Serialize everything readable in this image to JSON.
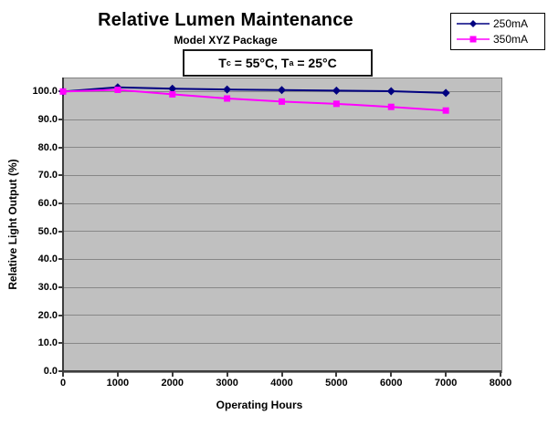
{
  "chart": {
    "title": "Relative Lumen Maintenance",
    "subtitle": "Model XYZ Package",
    "annotation": {
      "pre": "T",
      "sub1": "c",
      "mid": " = 55°C, T",
      "sub2": "a",
      "post": " = 25°C"
    },
    "x_axis_title": "Operating Hours",
    "y_axis_title": "Relative Light Output (%)"
  },
  "chart_data": {
    "type": "line",
    "title": "Relative Lumen Maintenance",
    "subtitle": "Model XYZ Package",
    "annotation_text": "Tc = 55°C, Ta = 25°C",
    "xlabel": "Operating Hours",
    "ylabel": "Relative Light Output (%)",
    "x": [
      0,
      1000,
      2000,
      3000,
      4000,
      5000,
      6000,
      7000
    ],
    "series": [
      {
        "name": "250mA",
        "color": "#000080",
        "marker": "diamond",
        "values": [
          100.0,
          101.5,
          101.0,
          100.7,
          100.5,
          100.3,
          100.1,
          99.5
        ]
      },
      {
        "name": "350mA",
        "color": "#FF00FF",
        "marker": "square",
        "values": [
          100.0,
          100.6,
          99.0,
          97.5,
          96.4,
          95.6,
          94.5,
          93.2
        ]
      }
    ],
    "xlim": [
      0,
      8000
    ],
    "ylim": [
      0,
      100
    ],
    "plot_y_max": 105,
    "xticks": [
      0,
      1000,
      2000,
      3000,
      4000,
      5000,
      6000,
      7000,
      8000
    ],
    "xtick_labels": [
      "0",
      "1000",
      "2000",
      "3000",
      "4000",
      "5000",
      "6000",
      "7000",
      "8000"
    ],
    "yticks": [
      0,
      10,
      20,
      30,
      40,
      50,
      60,
      70,
      80,
      90,
      100
    ],
    "ytick_labels": [
      "0.0",
      "10.0",
      "20.0",
      "30.0",
      "40.0",
      "50.0",
      "60.0",
      "70.0",
      "80.0",
      "90.0",
      "100.0"
    ],
    "grid": "horizontal",
    "legend_position": "top-right",
    "colors": {
      "plot_background": "#c0c0c0",
      "gridline": "#878787",
      "series_250mA": "#000080",
      "series_350mA": "#FF00FF"
    }
  }
}
